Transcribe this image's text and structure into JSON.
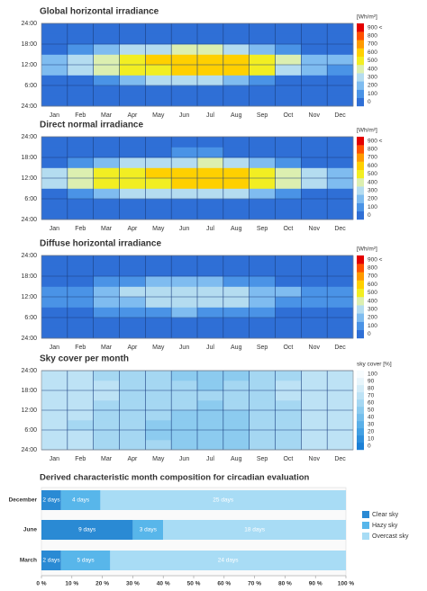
{
  "chart_data": [
    {
      "type": "heatmap",
      "title": "Global horizontal irradiance",
      "categories": [
        "Jan",
        "Feb",
        "Mar",
        "Apr",
        "May",
        "Jun",
        "Jul",
        "Aug",
        "Sep",
        "Oct",
        "Nov",
        "Dec"
      ],
      "y": [
        0,
        3,
        6,
        9,
        12,
        15,
        18,
        21
      ],
      "z": [
        [
          0,
          0,
          0,
          0,
          0,
          0,
          0,
          0,
          0,
          0,
          0,
          0
        ],
        [
          0,
          0,
          0,
          0,
          20,
          40,
          30,
          0,
          0,
          0,
          0,
          0
        ],
        [
          20,
          60,
          150,
          250,
          300,
          330,
          320,
          260,
          180,
          90,
          30,
          10
        ],
        [
          200,
          300,
          420,
          520,
          580,
          620,
          640,
          600,
          500,
          380,
          250,
          170
        ],
        [
          230,
          330,
          450,
          560,
          620,
          660,
          690,
          650,
          540,
          400,
          270,
          200
        ],
        [
          40,
          100,
          200,
          300,
          360,
          400,
          400,
          340,
          240,
          120,
          40,
          20
        ],
        [
          0,
          0,
          0,
          20,
          60,
          90,
          80,
          30,
          0,
          0,
          0,
          0
        ],
        [
          0,
          0,
          0,
          0,
          0,
          0,
          0,
          0,
          0,
          0,
          0,
          0
        ]
      ],
      "ylim": [
        0,
        24
      ],
      "yticks": [
        {
          "value": 24,
          "label": "24:00"
        },
        {
          "value": 18,
          "label": "18:00"
        },
        {
          "value": 12,
          "label": "12:00"
        },
        {
          "value": 6,
          "label": "6:00"
        },
        {
          "value": 0,
          "label": "24:00"
        }
      ],
      "colorbar": {
        "title": "[Wh/m²]",
        "levels": [
          0,
          100,
          200,
          300,
          400,
          500,
          600,
          700,
          800,
          {
            "value": 900,
            "label": "900 <"
          }
        ],
        "colors": [
          "#2f6fd6",
          "#4a93e6",
          "#7fbcf0",
          "#b4dcf0",
          "#dcefb0",
          "#f2ee22",
          "#ffd000",
          "#ff9a00",
          "#ff5200",
          "#e40000"
        ]
      }
    },
    {
      "type": "heatmap",
      "title": "Direct normal irradiance",
      "categories": [
        "Jan",
        "Feb",
        "Mar",
        "Apr",
        "May",
        "Jun",
        "Jul",
        "Aug",
        "Sep",
        "Oct",
        "Nov",
        "Dec"
      ],
      "y": [
        0,
        3,
        6,
        9,
        12,
        15,
        18,
        21
      ],
      "z": [
        [
          0,
          0,
          0,
          0,
          0,
          0,
          0,
          0,
          0,
          0,
          0,
          0
        ],
        [
          0,
          0,
          0,
          0,
          30,
          60,
          40,
          0,
          0,
          0,
          0,
          0
        ],
        [
          30,
          100,
          200,
          300,
          330,
          350,
          380,
          320,
          250,
          150,
          50,
          20
        ],
        [
          300,
          400,
          500,
          550,
          580,
          600,
          650,
          620,
          560,
          450,
          320,
          250
        ],
        [
          330,
          420,
          520,
          560,
          600,
          620,
          680,
          650,
          580,
          470,
          350,
          280
        ],
        [
          60,
          150,
          250,
          320,
          360,
          380,
          400,
          350,
          280,
          150,
          50,
          30
        ],
        [
          0,
          0,
          0,
          30,
          80,
          120,
          100,
          40,
          0,
          0,
          0,
          0
        ],
        [
          0,
          0,
          0,
          0,
          0,
          0,
          0,
          0,
          0,
          0,
          0,
          0
        ]
      ],
      "ylim": [
        0,
        24
      ],
      "yticks": [
        {
          "value": 24,
          "label": "24:00"
        },
        {
          "value": 18,
          "label": "18:00"
        },
        {
          "value": 12,
          "label": "12:00"
        },
        {
          "value": 6,
          "label": "6:00"
        },
        {
          "value": 0,
          "label": "24:00"
        }
      ],
      "colorbar": {
        "title": "[Wh/m²]",
        "levels": [
          0,
          100,
          200,
          300,
          400,
          500,
          600,
          700,
          800,
          {
            "value": 900,
            "label": "900 <"
          }
        ],
        "colors": [
          "#2f6fd6",
          "#4a93e6",
          "#7fbcf0",
          "#b4dcf0",
          "#dcefb0",
          "#f2ee22",
          "#ffd000",
          "#ff9a00",
          "#ff5200",
          "#e40000"
        ]
      }
    },
    {
      "type": "heatmap",
      "title": "Diffuse horizontal irradiance",
      "categories": [
        "Jan",
        "Feb",
        "Mar",
        "Apr",
        "May",
        "Jun",
        "Jul",
        "Aug",
        "Sep",
        "Oct",
        "Nov",
        "Dec"
      ],
      "y": [
        0,
        3,
        6,
        9,
        12,
        15,
        18,
        21
      ],
      "z": [
        [
          0,
          0,
          0,
          0,
          0,
          0,
          0,
          0,
          0,
          0,
          0,
          0
        ],
        [
          0,
          0,
          0,
          0,
          10,
          30,
          20,
          0,
          0,
          0,
          0,
          0
        ],
        [
          20,
          50,
          100,
          150,
          180,
          200,
          190,
          160,
          120,
          70,
          30,
          10
        ],
        [
          120,
          170,
          230,
          290,
          320,
          340,
          330,
          300,
          250,
          190,
          130,
          100
        ],
        [
          130,
          180,
          250,
          310,
          340,
          360,
          350,
          320,
          270,
          200,
          140,
          110
        ],
        [
          40,
          80,
          130,
          180,
          210,
          230,
          220,
          190,
          140,
          80,
          40,
          20
        ],
        [
          0,
          0,
          0,
          20,
          50,
          70,
          60,
          30,
          0,
          0,
          0,
          0
        ],
        [
          0,
          0,
          0,
          0,
          0,
          0,
          0,
          0,
          0,
          0,
          0,
          0
        ]
      ],
      "ylim": [
        0,
        24
      ],
      "yticks": [
        {
          "value": 24,
          "label": "24:00"
        },
        {
          "value": 18,
          "label": "18:00"
        },
        {
          "value": 12,
          "label": "12:00"
        },
        {
          "value": 6,
          "label": "6:00"
        },
        {
          "value": 0,
          "label": "24:00"
        }
      ],
      "colorbar": {
        "title": "[Wh/m²]",
        "levels": [
          0,
          100,
          200,
          300,
          400,
          500,
          600,
          700,
          800,
          {
            "value": 900,
            "label": "900 <"
          }
        ],
        "colors": [
          "#2f6fd6",
          "#4a93e6",
          "#7fbcf0",
          "#b4dcf0",
          "#dcefb0",
          "#f2ee22",
          "#ffd000",
          "#ff9a00",
          "#ff5200",
          "#e40000"
        ]
      }
    },
    {
      "type": "heatmap",
      "title": "Sky cover per month",
      "categories": [
        "Jan",
        "Feb",
        "Mar",
        "Apr",
        "May",
        "Jun",
        "Jul",
        "Aug",
        "Sep",
        "Oct",
        "Nov",
        "Dec"
      ],
      "y": [
        0,
        3,
        6,
        9,
        12,
        15,
        18,
        21
      ],
      "z": [
        [
          74,
          70,
          68,
          64,
          60,
          58,
          56,
          58,
          62,
          68,
          72,
          76
        ],
        [
          72,
          70,
          66,
          62,
          58,
          56,
          55,
          57,
          60,
          66,
          71,
          74
        ],
        [
          70,
          68,
          64,
          60,
          58,
          55,
          54,
          56,
          60,
          64,
          70,
          73
        ],
        [
          72,
          70,
          66,
          62,
          60,
          58,
          56,
          58,
          62,
          66,
          72,
          75
        ],
        [
          74,
          72,
          68,
          64,
          62,
          60,
          58,
          60,
          64,
          68,
          74,
          77
        ],
        [
          75,
          72,
          70,
          66,
          64,
          62,
          60,
          62,
          66,
          70,
          74,
          78
        ],
        [
          76,
          73,
          70,
          66,
          63,
          60,
          58,
          60,
          65,
          70,
          75,
          78
        ],
        [
          75,
          72,
          69,
          65,
          62,
          59,
          57,
          59,
          63,
          69,
          74,
          77
        ]
      ],
      "ylim": [
        0,
        24
      ],
      "yticks": [
        {
          "value": 24,
          "label": "24:00"
        },
        {
          "value": 18,
          "label": "18:00"
        },
        {
          "value": 12,
          "label": "12:00"
        },
        {
          "value": 6,
          "label": "6:00"
        },
        {
          "value": 0,
          "label": "24:00"
        }
      ],
      "colorbar": {
        "title": "sky cover [%]",
        "levels": [
          0,
          10,
          20,
          30,
          40,
          50,
          60,
          70,
          80,
          90,
          100
        ],
        "colors": [
          "#1c80d6",
          "#2e8fdc",
          "#43a0e3",
          "#5bb0e8",
          "#74beec",
          "#8ccbef",
          "#a5d7f2",
          "#bde2f5",
          "#d3ecf8",
          "#e7f5fb",
          "#f7fcfe"
        ]
      }
    },
    {
      "type": "bar",
      "orientation": "horizontal",
      "stacked": true,
      "title": "Derived characteristic month composition for circadian evaluation",
      "categories": [
        "December",
        "June",
        "March"
      ],
      "series": [
        {
          "name": "Clear sky",
          "color": "#2a8ad4",
          "values": [
            6.45,
            30,
            6.45
          ],
          "value_labels": [
            "2 days",
            "9 days",
            "2 days"
          ]
        },
        {
          "name": "Hazy sky",
          "color": "#58b6ea",
          "values": [
            12.9,
            10,
            16.13
          ],
          "value_labels": [
            "4 days",
            "3 days",
            "5 days"
          ]
        },
        {
          "name": "Overcast sky",
          "color": "#a8dcf5",
          "values": [
            80.65,
            60,
            77.42
          ],
          "value_labels": [
            "25 days",
            "18 days",
            "24 days"
          ]
        }
      ],
      "xlim": [
        0,
        100
      ],
      "xticks": [
        {
          "value": 0,
          "label": "0 %"
        },
        {
          "value": 10,
          "label": "10 %"
        },
        {
          "value": 20,
          "label": "20 %"
        },
        {
          "value": 30,
          "label": "30 %"
        },
        {
          "value": 40,
          "label": "40 %"
        },
        {
          "value": 50,
          "label": "50 %"
        },
        {
          "value": 60,
          "label": "60 %"
        },
        {
          "value": 70,
          "label": "70 %"
        },
        {
          "value": 80,
          "label": "80 %"
        },
        {
          "value": 90,
          "label": "90 %"
        },
        {
          "value": 100,
          "label": "100 %"
        }
      ],
      "legend": "right"
    }
  ]
}
